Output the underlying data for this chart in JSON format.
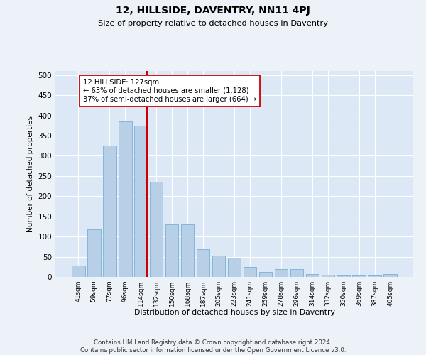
{
  "title": "12, HILLSIDE, DAVENTRY, NN11 4PJ",
  "subtitle": "Size of property relative to detached houses in Daventry",
  "xlabel": "Distribution of detached houses by size in Daventry",
  "ylabel": "Number of detached properties",
  "bar_labels": [
    "41sqm",
    "59sqm",
    "77sqm",
    "96sqm",
    "114sqm",
    "132sqm",
    "150sqm",
    "168sqm",
    "187sqm",
    "205sqm",
    "223sqm",
    "241sqm",
    "259sqm",
    "278sqm",
    "296sqm",
    "314sqm",
    "332sqm",
    "350sqm",
    "369sqm",
    "387sqm",
    "405sqm"
  ],
  "bar_values": [
    28,
    118,
    325,
    385,
    375,
    235,
    130,
    130,
    68,
    53,
    48,
    25,
    13,
    20,
    20,
    7,
    5,
    4,
    3,
    3,
    7
  ],
  "bar_color": "#b8cfe8",
  "bar_edge_color": "#7aafd4",
  "vline_color": "#cc0000",
  "annotation_line1": "12 HILLSIDE: 127sqm",
  "annotation_line2": "← 63% of detached houses are smaller (1,128)",
  "annotation_line3": "37% of semi-detached houses are larger (664) →",
  "annotation_box_color": "#ffffff",
  "annotation_box_edge": "#cc0000",
  "ylim": [
    0,
    510
  ],
  "yticks": [
    0,
    50,
    100,
    150,
    200,
    250,
    300,
    350,
    400,
    450,
    500
  ],
  "bg_color": "#dce8f5",
  "fig_bg_color": "#edf2f9",
  "footer_line1": "Contains HM Land Registry data © Crown copyright and database right 2024.",
  "footer_line2": "Contains public sector information licensed under the Open Government Licence v3.0."
}
